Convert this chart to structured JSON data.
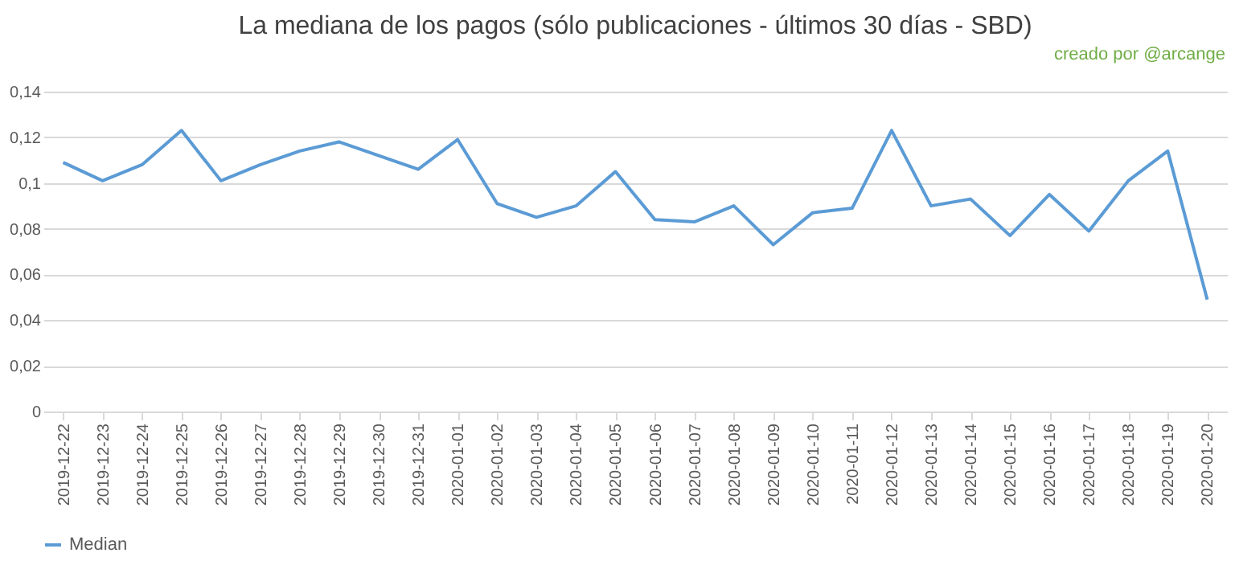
{
  "chart_data": {
    "type": "line",
    "title": "La mediana de los pagos (sólo publicaciones - últimos 30 días - SBD)",
    "annotations": [
      "creado por @arcange"
    ],
    "categories": [
      "2019-12-22",
      "2019-12-23",
      "2019-12-24",
      "2019-12-25",
      "2019-12-26",
      "2019-12-27",
      "2019-12-28",
      "2019-12-29",
      "2019-12-30",
      "2019-12-31",
      "2020-01-01",
      "2020-01-02",
      "2020-01-03",
      "2020-01-04",
      "2020-01-05",
      "2020-01-06",
      "2020-01-07",
      "2020-01-08",
      "2020-01-09",
      "2020-01-10",
      "2020-01-11",
      "2020-01-12",
      "2020-01-13",
      "2020-01-14",
      "2020-01-15",
      "2020-01-16",
      "2020-01-17",
      "2020-01-18",
      "2020-01-19",
      "2020-01-20"
    ],
    "series": [
      {
        "name": "Median",
        "color": "#5b9bd5",
        "values": [
          0.109,
          0.101,
          0.108,
          0.123,
          0.101,
          0.108,
          0.114,
          0.118,
          0.112,
          0.106,
          0.119,
          0.091,
          0.085,
          0.09,
          0.105,
          0.084,
          0.083,
          0.09,
          0.073,
          0.087,
          0.089,
          0.123,
          0.09,
          0.093,
          0.077,
          0.095,
          0.079,
          0.101,
          0.114,
          0.049
        ]
      }
    ],
    "ylim": [
      0,
      0.14
    ],
    "yticks": [
      {
        "value": 0,
        "label": "0"
      },
      {
        "value": 0.02,
        "label": "0,02"
      },
      {
        "value": 0.04,
        "label": "0,04"
      },
      {
        "value": 0.06,
        "label": "0,06"
      },
      {
        "value": 0.08,
        "label": "0,08"
      },
      {
        "value": 0.1,
        "label": "0,1"
      },
      {
        "value": 0.12,
        "label": "0,12"
      },
      {
        "value": 0.14,
        "label": "0,14"
      }
    ],
    "grid": "y",
    "legend": "bottom",
    "marker": "none",
    "line_style": "solid"
  }
}
